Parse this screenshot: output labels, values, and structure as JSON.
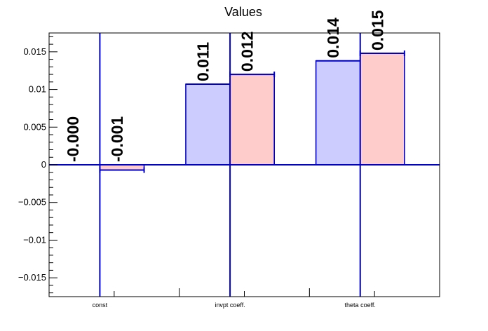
{
  "chart_data": {
    "type": "bar",
    "title": "Values",
    "categories": [
      "const",
      "invpt coeff.",
      "theta coeff."
    ],
    "series": [
      {
        "values": [
          0.0,
          0.0107,
          0.0138
        ],
        "labels": [
          "-0.000",
          "0.011",
          "0.014"
        ],
        "color": "#ccccff"
      },
      {
        "values": [
          -0.0007,
          0.012,
          0.0148
        ],
        "labels": [
          "-0.001",
          "0.012",
          "0.015"
        ],
        "color": "#ffcccc"
      }
    ],
    "error_bars": [
      [
        0.5,
        0.5
      ],
      [
        0.5,
        0.5
      ],
      [
        0.5,
        0.5
      ]
    ],
    "ylim": [
      -0.0175,
      0.0175
    ],
    "yticks": [
      {
        "value": 0.015,
        "label": "0.015"
      },
      {
        "value": 0.01,
        "label": "0.01"
      },
      {
        "value": 0.005,
        "label": "0.005"
      },
      {
        "value": 0,
        "label": "0"
      },
      {
        "value": -0.005,
        "label": "−0.005"
      },
      {
        "value": -0.01,
        "label": "−0.01"
      },
      {
        "value": -0.015,
        "label": "−0.015"
      }
    ],
    "xlabel": "",
    "ylabel": "",
    "grid": false,
    "legend": "none",
    "colors": {
      "frame": "#000000",
      "bar_edge": "#0000cc",
      "error_line": "#0000cc",
      "zero_line": "#0000cc"
    }
  }
}
